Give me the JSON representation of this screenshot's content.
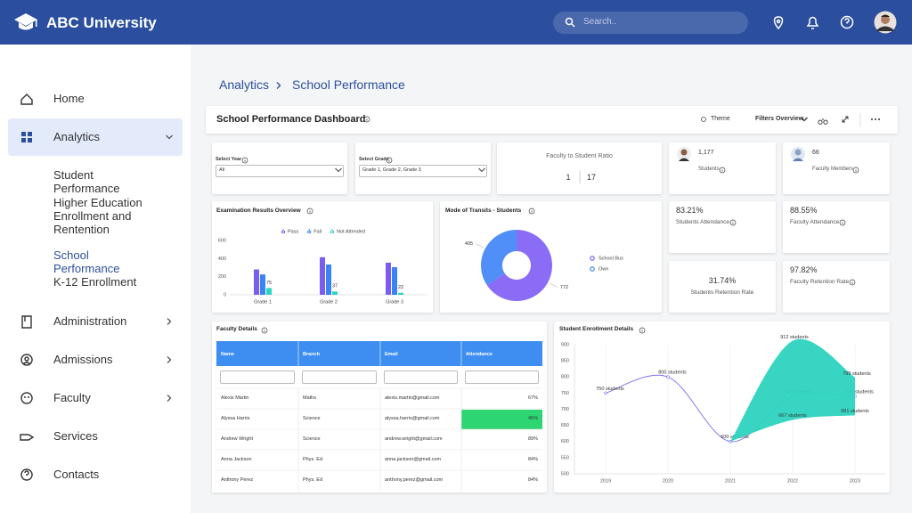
{
  "header": {
    "brand": "ABC University",
    "search_placeholder": "Search.."
  },
  "sidebar": {
    "active_item": 1,
    "items": [
      {
        "label": "Home"
      },
      {
        "label": "Analytics",
        "submenu": "open",
        "children": [
          "Student Performance",
          "Higher Education Enrollment and Rentention",
          "School Performance",
          "K-12 Enrollment"
        ],
        "active_child": 2
      },
      {
        "label": "Administration",
        "submenu": "closed"
      },
      {
        "label": "Admissions",
        "submenu": "closed"
      },
      {
        "label": "Faculty",
        "submenu": "closed"
      },
      {
        "label": "Services"
      },
      {
        "label": "Contacts"
      }
    ]
  },
  "breadcrumb": [
    "Analytics",
    "School Performance"
  ],
  "toolbar": {
    "title": "School Performance Dashboard",
    "theme": "Theme",
    "filters": "Filters Overview"
  },
  "filters": [
    {
      "label": "Select Year",
      "value": "All"
    },
    {
      "label": "Select Grade",
      "value": "Grade 1, Grade 2, Grade 3"
    }
  ],
  "ratio": {
    "label": "Faculty to Student Ratio",
    "faculty": 1,
    "students": 17
  },
  "people": [
    {
      "value": "1,177",
      "label": "Students"
    },
    {
      "value": "66",
      "label": "Faculty Members"
    }
  ],
  "rates": [
    {
      "value": "83.21%",
      "label": "Students Attendance"
    },
    {
      "value": "88.55%",
      "label": "Faculty Attendance"
    },
    {
      "value": "31.74%",
      "label": "Students Retention Rate"
    },
    {
      "value": "97.82%",
      "label": "Faculty Retention Rate"
    }
  ],
  "exam_chart": {
    "type": "bar",
    "title": "Examination Results Overview",
    "categories": [
      "Grade 1",
      "Grade 2",
      "Grade 3"
    ],
    "series": [
      {
        "name": "Pass",
        "color": "#7b5cf0",
        "values": [
          280,
          415,
          355
        ]
      },
      {
        "name": "Fail",
        "color": "#3b82f6",
        "values": [
          225,
          335,
          305
        ]
      },
      {
        "name": "Not Attended",
        "color": "#2dd4bf",
        "values": [
          75,
          37,
          22
        ],
        "data_labels": true
      }
    ],
    "ylim": [
      0,
      600
    ],
    "yticks": [
      0,
      200,
      400,
      600
    ],
    "grid": false
  },
  "transit_chart": {
    "type": "pie",
    "title": "Mode of Transits - Students",
    "categories": [
      "School Bus",
      "Own"
    ],
    "values": [
      772,
      405
    ],
    "colors": [
      "#8b6cf6",
      "#4f8ff7"
    ],
    "donut": true
  },
  "faculty_table": {
    "title": "Faculty Details",
    "columns": [
      "Name",
      "Branch",
      "Email",
      "Attendance"
    ],
    "rows": [
      [
        "Alexis Martin",
        "Maths",
        "alexis.martin@gmail.com",
        "67%"
      ],
      [
        "Alyssa Harris",
        "Science",
        "alyssa.harris@gmail.com",
        "45%"
      ],
      [
        "Andrew Wright",
        "Science",
        "andrew.wright@gmail.com",
        "89%"
      ],
      [
        "Anna Jackson",
        "Phys. Ed",
        "anna.jackson@gmail.com",
        "84%"
      ],
      [
        "Anthony Perez",
        "Phys. Ed",
        "anthony.perez@gmail.com",
        "84%"
      ]
    ],
    "highlight": {
      "row": 1,
      "column": 3,
      "color": "#2ed573"
    }
  },
  "enrollment_chart": {
    "type": "line",
    "title": "Student Enrollment Details",
    "x": [
      2019,
      2020,
      2021,
      2022,
      2023
    ],
    "series": [
      {
        "color": "#7c6cf2",
        "values": [
          750,
          800,
          600,
          740,
          740
        ],
        "value_labels": [
          "750 students",
          "800 students",
          "600 students",
          "740 students",
          "740 students"
        ]
      },
      {
        "type": "range",
        "color": "#2dd4bf",
        "high": [
          null,
          null,
          600,
          912,
          799
        ],
        "low": [
          null,
          null,
          600,
          667,
          681
        ],
        "high_labels": [
          null,
          null,
          null,
          "912 students",
          "799 students"
        ],
        "low_labels": [
          null,
          null,
          null,
          "667 students",
          "681 students"
        ]
      }
    ],
    "xlim": [
      2018.5,
      2023.5
    ],
    "xticks": [
      2019,
      2020,
      2021,
      2022,
      2023
    ],
    "ylim": [
      500,
      900
    ],
    "yticks": [
      500,
      550,
      600,
      650,
      700,
      750,
      800,
      850,
      900
    ],
    "grid": true
  }
}
